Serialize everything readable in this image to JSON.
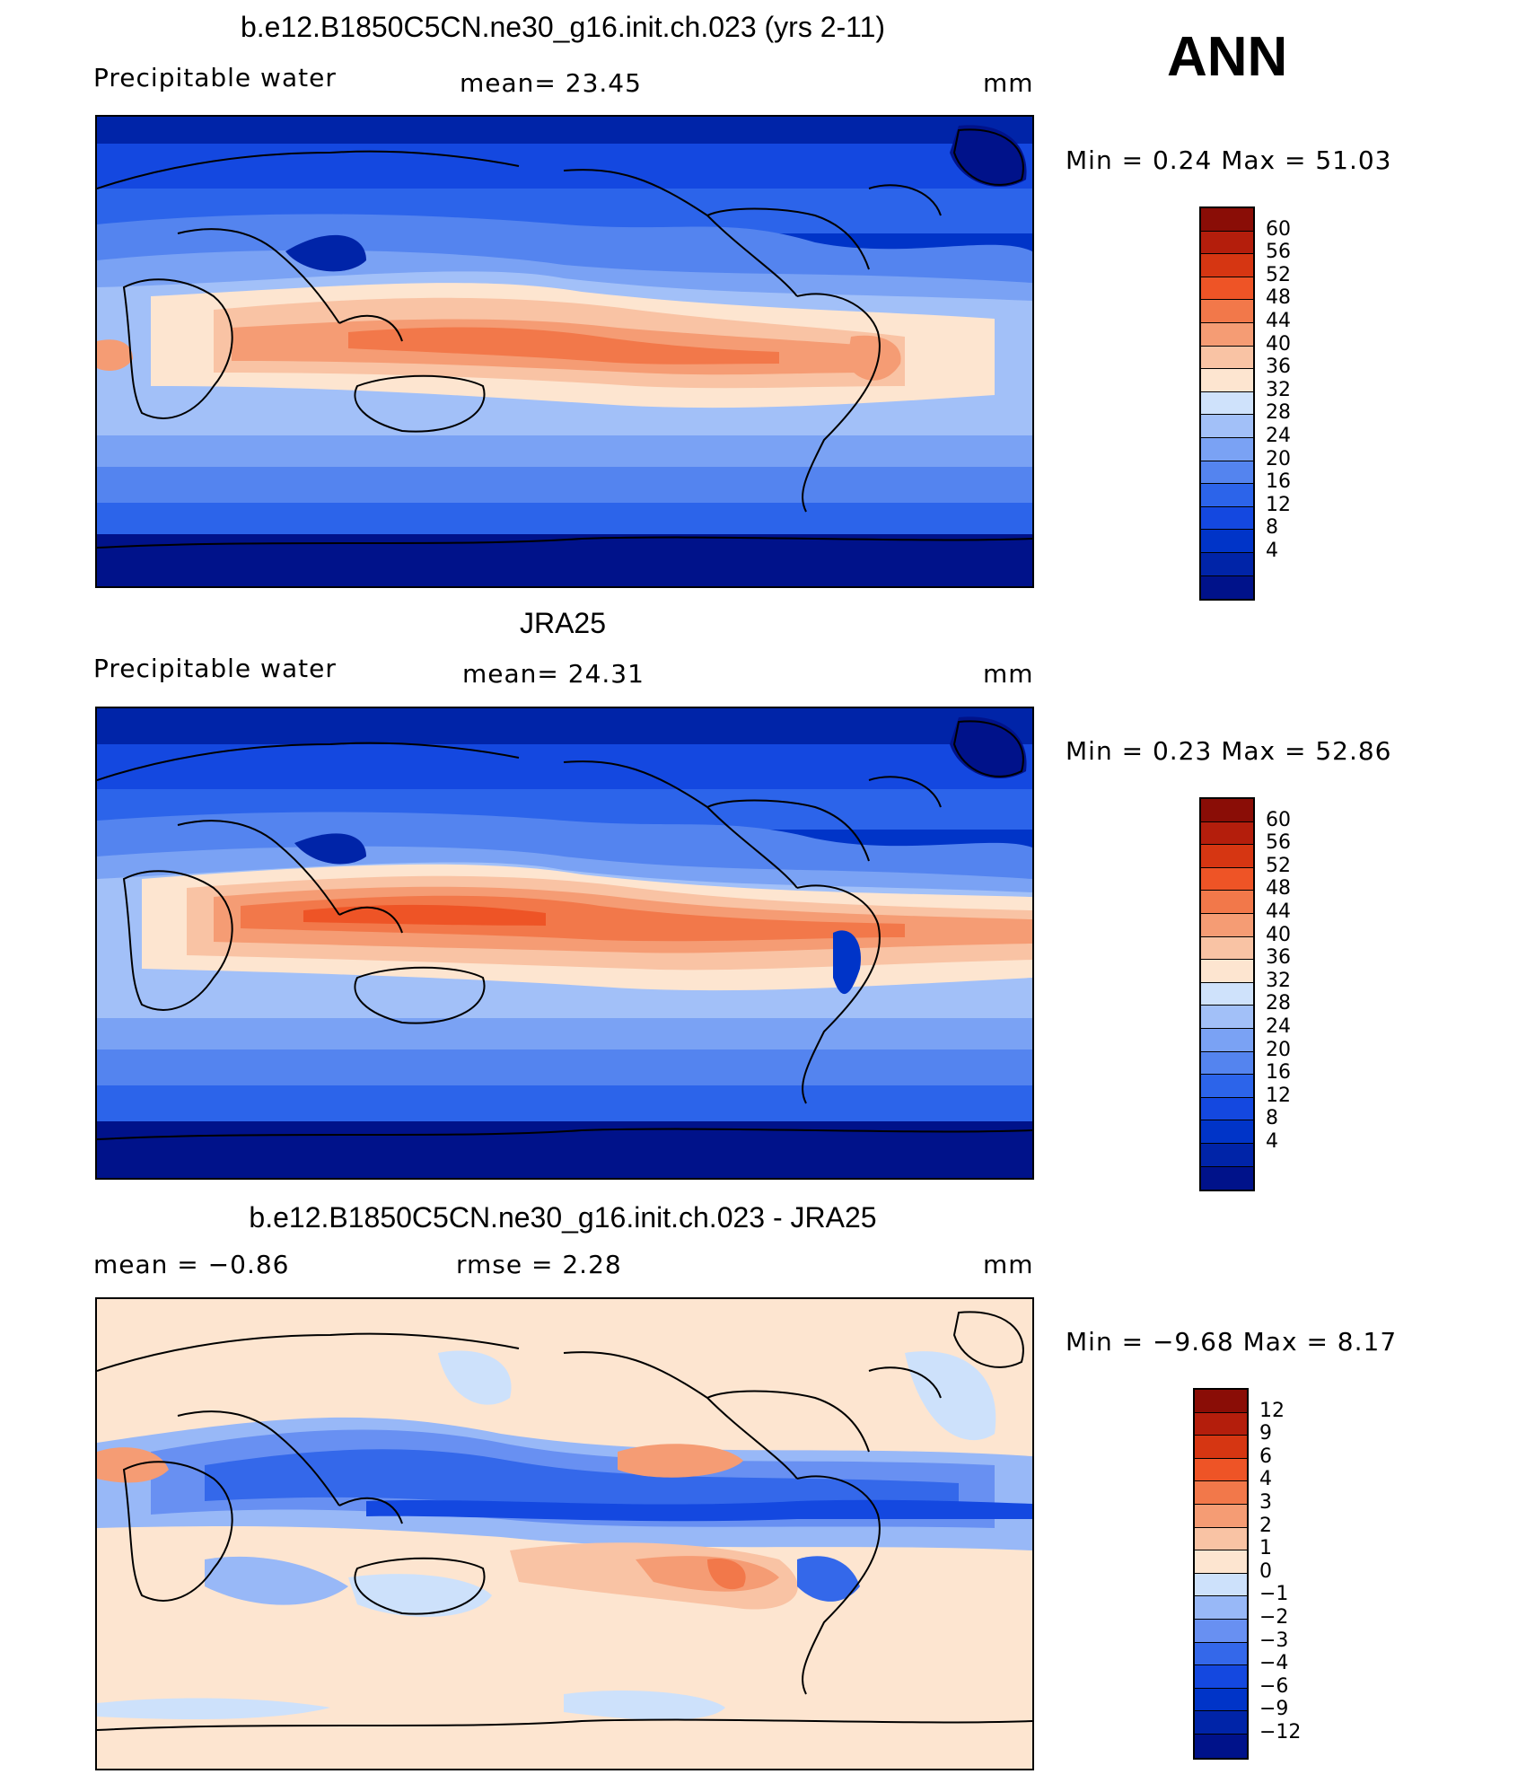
{
  "season": "ANN",
  "colors": {
    "abs": [
      "#00128a",
      "#0024a8",
      "#0034c8",
      "#1448e0",
      "#2c64ea",
      "#5484ef",
      "#7aa2f4",
      "#a2c0f8",
      "#cfe2fb",
      "#fde5d0",
      "#f9c3a4",
      "#f59c74",
      "#f2784a",
      "#ee5426",
      "#d63612",
      "#b41e0c",
      "#8a0d06"
    ],
    "diff": [
      "#00128a",
      "#0024a8",
      "#0034c8",
      "#1448e0",
      "#3468ea",
      "#6890f2",
      "#98b8f7",
      "#cde1fb",
      "#fde5d0",
      "#f9c3a4",
      "#f59c74",
      "#f2784a",
      "#ee5426",
      "#d63612",
      "#b41e0c",
      "#8a0d06"
    ]
  },
  "panels": [
    {
      "title": "b.e12.B1850C5CN.ne30_g16.init.ch.023 (yrs 2-11)",
      "left": "Precipitable  water",
      "center": "mean=   23.45",
      "right": "mm",
      "minmax": "Min  =     0.24  Max  =    51.03",
      "chart_data": {
        "type": "heatmap",
        "variable": "Precipitable water",
        "units": "mm",
        "mean": 23.45,
        "min": 0.24,
        "max": 51.03,
        "colorbar_levels": [
          "60",
          "56",
          "52",
          "48",
          "44",
          "40",
          "36",
          "32",
          "28",
          "24",
          "20",
          "16",
          "12",
          "8",
          "4"
        ]
      }
    },
    {
      "title": "JRA25",
      "left": "Precipitable  water",
      "center": "mean=   24.31",
      "right": "mm",
      "minmax": "Min  =     0.23  Max  =    52.86",
      "chart_data": {
        "type": "heatmap",
        "variable": "Precipitable water",
        "units": "mm",
        "mean": 24.31,
        "min": 0.23,
        "max": 52.86,
        "colorbar_levels": [
          "60",
          "56",
          "52",
          "48",
          "44",
          "40",
          "36",
          "32",
          "28",
          "24",
          "20",
          "16",
          "12",
          "8",
          "4"
        ]
      }
    },
    {
      "title": "b.e12.B1850C5CN.ne30_g16.init.ch.023 - JRA25",
      "left": "mean  =    −0.86",
      "center": "rmse  =     2.28",
      "right": "mm",
      "minmax": "Min  =   −9.68  Max  =     8.17",
      "chart_data": {
        "type": "heatmap",
        "units": "mm",
        "mean": -0.86,
        "rmse": 2.28,
        "min": -9.68,
        "max": 8.17,
        "colorbar_levels": [
          "12",
          "9",
          "6",
          "4",
          "3",
          "2",
          "1",
          "0",
          "−1",
          "−2",
          "−3",
          "−4",
          "−6",
          "−9",
          "−12"
        ]
      }
    }
  ]
}
